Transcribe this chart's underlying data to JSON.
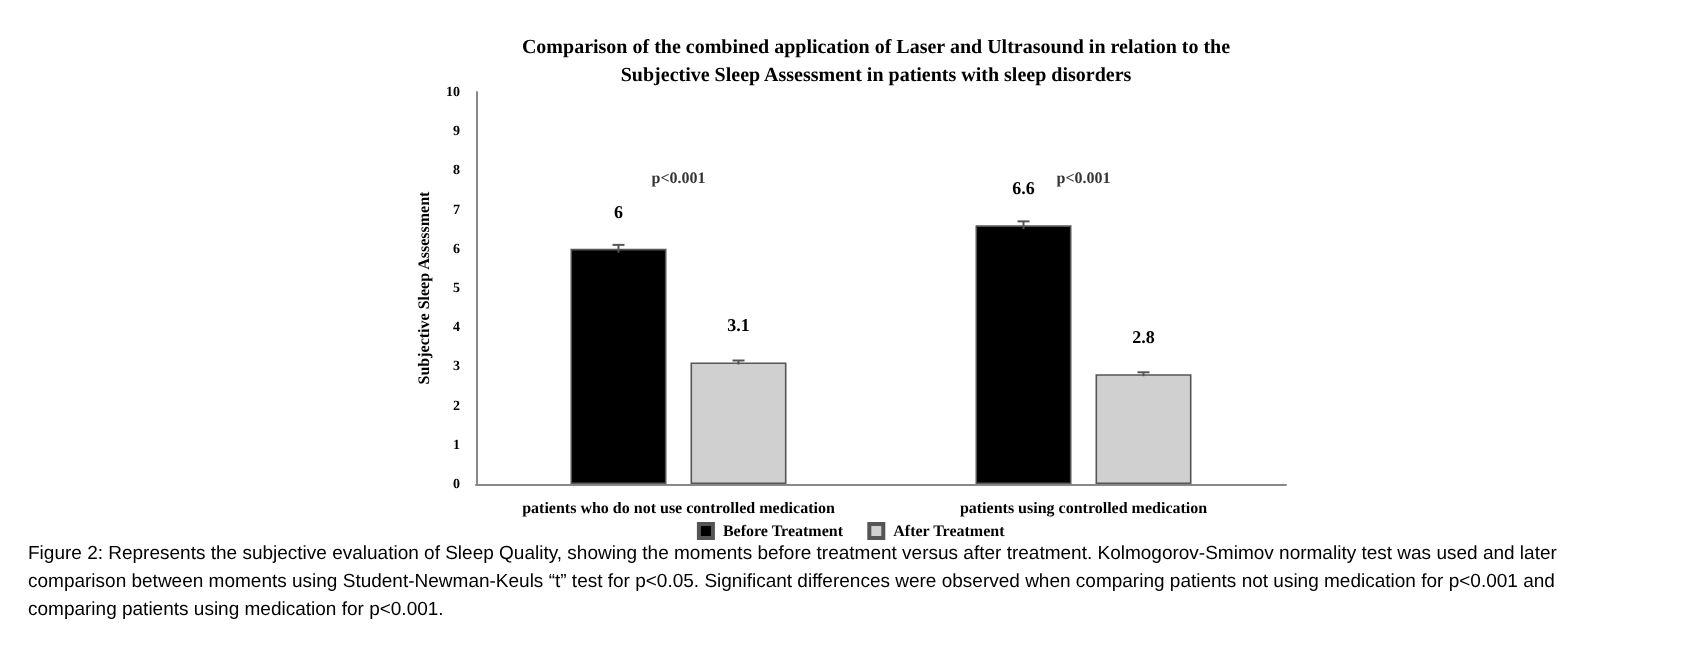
{
  "chart_data": {
    "type": "bar",
    "title": "Comparison of the combined application of Laser and Ultrasound in relation to the\nSubjective Sleep Assessment in patients with sleep disorders",
    "ylabel": "Subjective Sleep Assessment",
    "categories": [
      "patients who do not use controlled medication",
      "patients using controlled medication"
    ],
    "series": [
      {
        "name": "Before Treatment",
        "color": "#000000",
        "values": [
          6,
          6.6
        ],
        "errors": [
          0.1,
          0.1
        ]
      },
      {
        "name": "After Treatment",
        "color": "#d0d0d0",
        "values": [
          3.1,
          2.8
        ],
        "errors": [
          0.05,
          0.05
        ]
      }
    ],
    "ylim": [
      0,
      10
    ],
    "yticks": [
      0,
      1,
      2,
      3,
      4,
      5,
      6,
      7,
      8,
      9,
      10
    ],
    "grid": false,
    "legend": "bottom",
    "data_labels": true,
    "annotations": [
      "p<0.001",
      "p<0.001",
      "Figure 2: Represents the subjective evaluation of Sleep Quality, showing the moments before treatment versus after treatment. Kolmogorov-Smimov normality test was used and later comparison between moments using Student-Newman-Keuls “t” test for p<0.05. Significant differences were observed when comparing patients not using medication for p<0.001 and comparing patients using medication for p<0.001."
    ]
  }
}
